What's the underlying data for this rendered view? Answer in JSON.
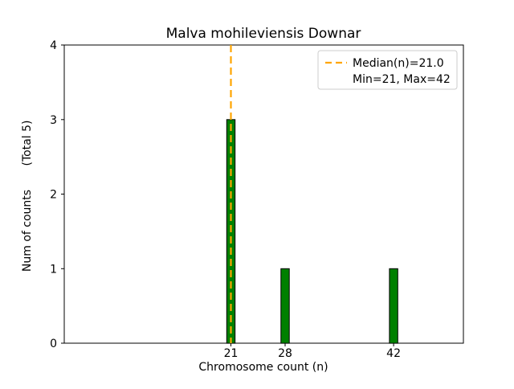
{
  "chart_data": {
    "type": "bar",
    "title": "Malva mohileviensis Downar",
    "xlabel": "Chromosome count (n)",
    "ylabel": "Num of counts",
    "ylabel_note": "(Total 5)",
    "x": [
      21,
      28,
      42
    ],
    "values": [
      3,
      1,
      1
    ],
    "x_ticks": [
      21,
      28,
      42
    ],
    "y_ticks": [
      0,
      1,
      2,
      3,
      4
    ],
    "xlim": [
      -0.5,
      51
    ],
    "ylim": [
      0,
      4
    ],
    "median": 21.0,
    "min": 21,
    "max": 42,
    "total_counts": 5,
    "legend": [
      "Median(n)=21.0",
      "Min=21, Max=42"
    ],
    "legend_position": "upper right",
    "grid": false,
    "colors": {
      "bar_fill": "#008000",
      "bar_edge": "#000000",
      "median_line": "#FFA500",
      "axis": "#000000",
      "legend_border": "#cccccc",
      "background": "#ffffff"
    }
  }
}
